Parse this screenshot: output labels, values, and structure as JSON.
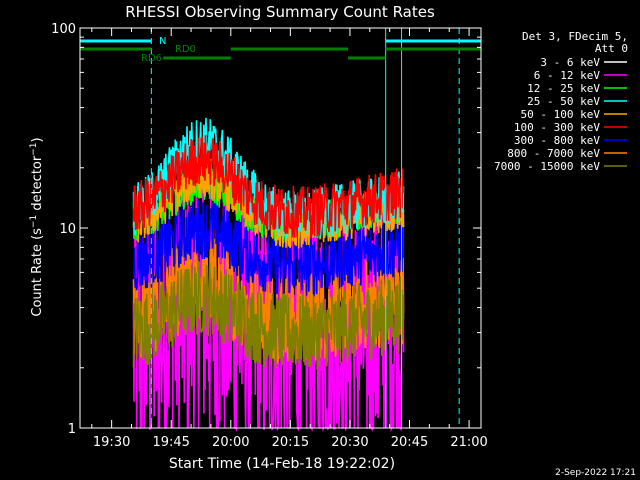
{
  "chart_data": {
    "type": "line",
    "title": "RHESSI Observing Summary Count Rates",
    "xlabel": "Start Time (14-Feb-18 19:22:02)",
    "ylabel": "Count Rate (s⁻¹ detector⁻¹)",
    "yscale": "log",
    "ylim": [
      1,
      100
    ],
    "xlim": [
      "19:22:02",
      "21:03:00"
    ],
    "x_ticks": [
      "19:30",
      "19:45",
      "20:00",
      "20:15",
      "20:30",
      "20:45",
      "21:00"
    ],
    "y_ticks": [
      "1",
      "10",
      "100"
    ],
    "legend_header": [
      "Det 3, FDecim 5,",
      "Att 0"
    ],
    "legend_placement": "right",
    "series": [
      {
        "name": "3 - 6 keV",
        "color": "#ffffff",
        "profile": {
          "base": 1.0,
          "peak": 1.0,
          "noise": 0.0
        }
      },
      {
        "name": "6 - 12 keV",
        "color": "#ff00ff",
        "profile": {
          "base": 2.5,
          "peak": 4.0,
          "noise": 0.55
        }
      },
      {
        "name": "12 - 25 keV",
        "color": "#00ff00",
        "profile": {
          "base": 10.5,
          "peak": 17.0,
          "noise": 0.08
        }
      },
      {
        "name": "25 - 50 keV",
        "color": "#00ffff",
        "profile": {
          "base": 11.5,
          "peak": 27.0,
          "noise": 0.1
        }
      },
      {
        "name": "50 - 100 keV",
        "color": "#ffa500",
        "profile": {
          "base": 10.0,
          "peak": 18.0,
          "noise": 0.08
        }
      },
      {
        "name": "100 - 300 keV",
        "color": "#ff0000",
        "profile": {
          "base": 12.0,
          "peak": 22.0,
          "noise": 0.1
        }
      },
      {
        "name": "300 - 800 keV",
        "color": "#0000ff",
        "profile": {
          "base": 6.5,
          "peak": 10.0,
          "noise": 0.12
        }
      },
      {
        "name": "800 - 7000 keV",
        "color": "#ff8000",
        "profile": {
          "base": 3.6,
          "peak": 5.5,
          "noise": 0.18
        }
      },
      {
        "name": "7000 - 15000 keV",
        "color": "#808000",
        "profile": {
          "base": 3.0,
          "peak": 4.5,
          "noise": 0.15
        }
      }
    ],
    "data_window": {
      "start": "19:35:30",
      "end": "20:43:30"
    },
    "flare_peak_time": "19:53:00",
    "status_bars": [
      {
        "label": "N",
        "color": "#00ffff",
        "segments": [
          [
            "19:22:02",
            "19:40:00"
          ],
          [
            "20:39:00",
            "21:03:00"
          ]
        ]
      },
      {
        "label": "RD0",
        "color": "#008000",
        "segments": [
          [
            "19:22:02",
            "19:40:00"
          ],
          [
            "20:00:00",
            "20:29:30"
          ],
          [
            "20:39:00",
            "21:03:00"
          ]
        ]
      },
      {
        "label": "RD6",
        "color": "#008000",
        "segments": [
          [
            "19:43:00",
            "20:00:00"
          ],
          [
            "20:29:30",
            "20:39:00"
          ]
        ]
      }
    ],
    "vertical_markers": [
      {
        "time": "19:22:02",
        "color": "#00ffff",
        "style": "solid"
      },
      {
        "time": "19:40:00",
        "color": "#00ffff",
        "style": "dashed"
      },
      {
        "time": "20:39:00",
        "color": "#00ffff",
        "style": "solid"
      },
      {
        "time": "20:43:00",
        "color": "#00ffff",
        "style": "solid"
      },
      {
        "time": "20:57:30",
        "color": "#00ffff",
        "style": "dashed"
      }
    ],
    "footer_date": "2-Sep-2022 17:21"
  }
}
